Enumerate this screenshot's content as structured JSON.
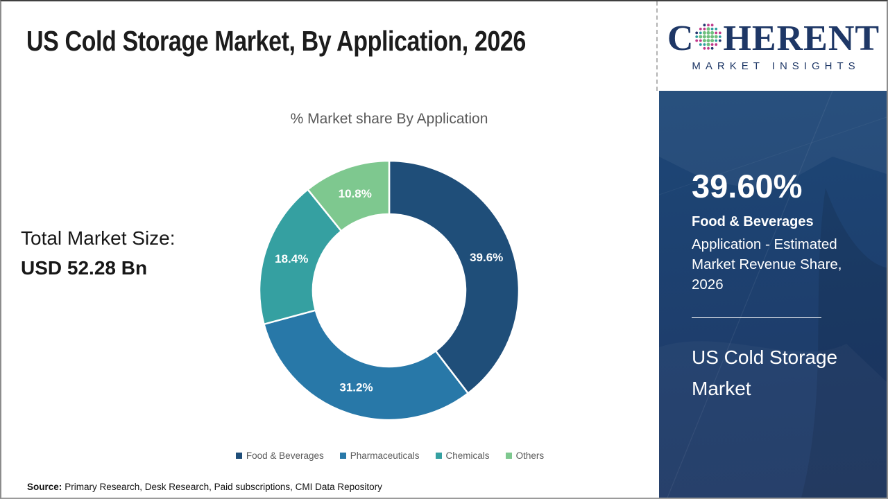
{
  "header": {
    "title": "US Cold Storage Market, By Application, 2026"
  },
  "logo": {
    "prefix": "C",
    "suffix": "HERENT",
    "tagline": "MARKET INSIGHTS",
    "navy": "#1e3766",
    "dot_colors": [
      "#2d9e9e",
      "#6fbf7e",
      "#c0388a",
      "#24356e"
    ]
  },
  "left_panel": {
    "label": "Total Market Size:",
    "value": "USD 52.28 Bn"
  },
  "chart_data": {
    "type": "pie",
    "subtype": "donut",
    "title": "% Market share By Application",
    "categories": [
      "Food & Beverages",
      "Pharmaceuticals",
      "Chemicals",
      "Others"
    ],
    "values": [
      39.6,
      31.2,
      18.4,
      10.8
    ],
    "labels": [
      "39.6%",
      "31.2%",
      "18.4%",
      "10.8%"
    ],
    "colors": [
      "#1f4e79",
      "#2878a8",
      "#35a0a1",
      "#7ec88f"
    ],
    "start_angle_deg": 0,
    "clockwise": true,
    "donut_hole_ratio": 0.59,
    "segment_border_color": "#ffffff",
    "label_color": "#ffffff",
    "legend_position": "bottom"
  },
  "sidebar": {
    "stat_value": "39.60%",
    "stat_category": "Food & Beverages",
    "stat_description": "Application - Estimated Market Revenue Share, 2026",
    "market_name": "US Cold Storage Market",
    "bg_color": "#1d4170"
  },
  "footer": {
    "source_label": "Source:",
    "source_text": "Primary Research, Desk Research, Paid subscriptions, CMI Data Repository"
  }
}
